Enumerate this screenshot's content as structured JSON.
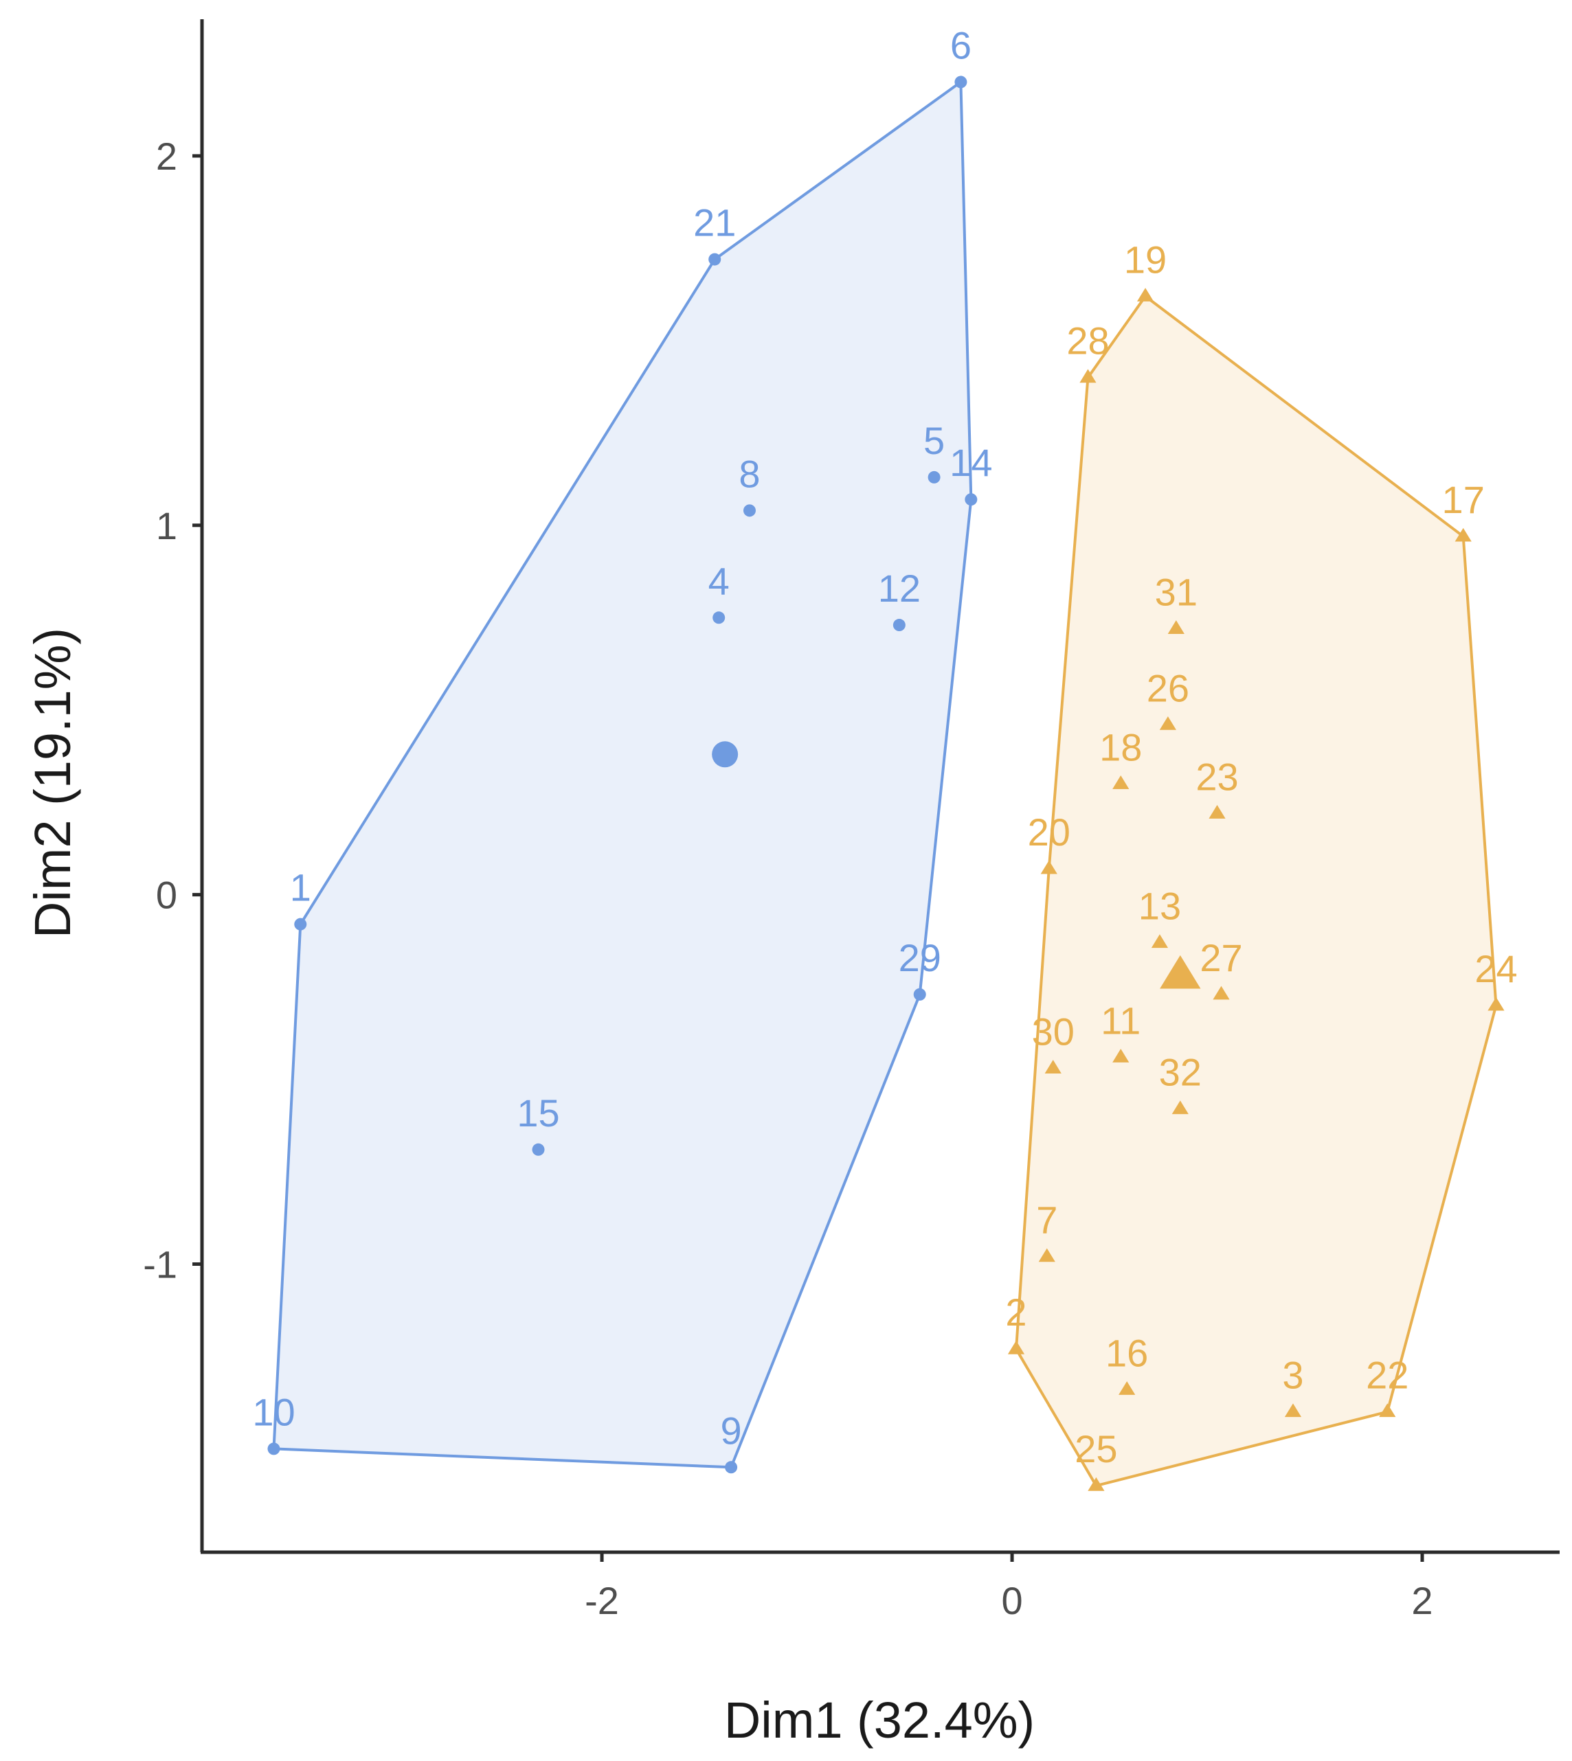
{
  "chart_data": {
    "type": "scatter",
    "title": "",
    "xlabel": "Dim1 (32.4%)",
    "ylabel": "Dim2 (19.1%)",
    "xlim": [
      -3.95,
      2.67
    ],
    "ylim": [
      -1.78,
      2.37
    ],
    "x_ticks": [
      -2,
      0,
      2
    ],
    "y_ticks": [
      -1,
      0,
      1,
      2
    ],
    "grid": false,
    "legend": "none",
    "hull_fill_opacity": 0.15,
    "series": [
      {
        "color": "#6f9be0",
        "marker": "circle",
        "points": [
          {
            "label": "1",
            "x": -3.47,
            "y": -0.08
          },
          {
            "label": "4",
            "x": -1.43,
            "y": 0.75
          },
          {
            "label": "5",
            "x": -0.38,
            "y": 1.13
          },
          {
            "label": "6",
            "x": -0.25,
            "y": 2.2
          },
          {
            "label": "8",
            "x": -1.28,
            "y": 1.04
          },
          {
            "label": "9",
            "x": -1.37,
            "y": -1.55
          },
          {
            "label": "10",
            "x": -3.6,
            "y": -1.5
          },
          {
            "label": "12",
            "x": -0.55,
            "y": 0.73
          },
          {
            "label": "14",
            "x": -0.2,
            "y": 1.07
          },
          {
            "label": "15",
            "x": -2.31,
            "y": -0.69
          },
          {
            "label": "21",
            "x": -1.45,
            "y": 1.72
          },
          {
            "label": "29",
            "x": -0.45,
            "y": -0.27
          }
        ],
        "hull": [
          "6",
          "14",
          "29",
          "9",
          "10",
          "1",
          "21"
        ],
        "centroid": {
          "x": -1.4,
          "y": 0.38
        }
      },
      {
        "color": "#e8b04f",
        "marker": "triangle",
        "points": [
          {
            "label": "2",
            "x": 0.02,
            "y": -1.23
          },
          {
            "label": "3",
            "x": 1.37,
            "y": -1.4
          },
          {
            "label": "7",
            "x": 0.17,
            "y": -0.98
          },
          {
            "label": "11",
            "x": 0.53,
            "y": -0.44
          },
          {
            "label": "13",
            "x": 0.72,
            "y": -0.13
          },
          {
            "label": "16",
            "x": 0.56,
            "y": -1.34
          },
          {
            "label": "17",
            "x": 2.2,
            "y": 0.97
          },
          {
            "label": "18",
            "x": 0.53,
            "y": 0.3
          },
          {
            "label": "19",
            "x": 0.65,
            "y": 1.62
          },
          {
            "label": "20",
            "x": 0.18,
            "y": 0.07
          },
          {
            "label": "22",
            "x": 1.83,
            "y": -1.4
          },
          {
            "label": "23",
            "x": 1.0,
            "y": 0.22
          },
          {
            "label": "24",
            "x": 2.36,
            "y": -0.3
          },
          {
            "label": "25",
            "x": 0.41,
            "y": -1.6
          },
          {
            "label": "26",
            "x": 0.76,
            "y": 0.46
          },
          {
            "label": "27",
            "x": 1.02,
            "y": -0.27
          },
          {
            "label": "28",
            "x": 0.37,
            "y": 1.4
          },
          {
            "label": "30",
            "x": 0.2,
            "y": -0.47
          },
          {
            "label": "31",
            "x": 0.8,
            "y": 0.72
          },
          {
            "label": "32",
            "x": 0.82,
            "y": -0.58
          }
        ],
        "hull": [
          "19",
          "17",
          "24",
          "22",
          "25",
          "2",
          "20",
          "28"
        ],
        "centroid": {
          "x": 0.82,
          "y": -0.22
        }
      }
    ]
  }
}
